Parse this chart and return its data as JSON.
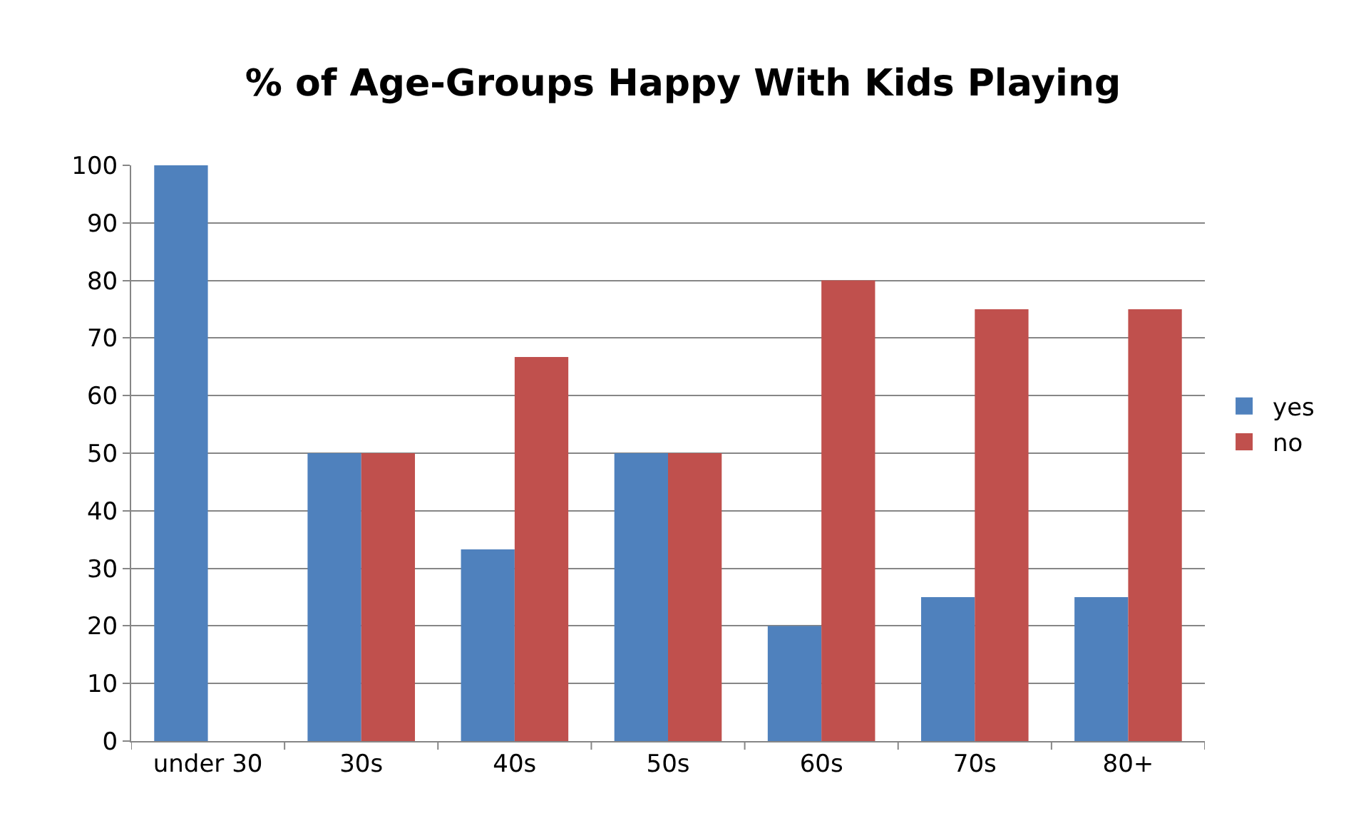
{
  "chart_data": {
    "type": "bar",
    "title": "% of Age-Groups Happy With Kids Playing",
    "categories": [
      "under 30",
      "30s",
      "40s",
      "50s",
      "60s",
      "70s",
      "80+"
    ],
    "series": [
      {
        "name": "yes",
        "color": "#4f81bd",
        "values": [
          100,
          50,
          33.3,
          50,
          20,
          25,
          25
        ]
      },
      {
        "name": "no",
        "color": "#c0504d",
        "values": [
          0,
          50,
          66.7,
          50,
          80,
          75,
          75
        ]
      }
    ],
    "ylim": [
      0,
      100
    ],
    "yticks": [
      0,
      10,
      20,
      30,
      40,
      50,
      60,
      70,
      80,
      90,
      100
    ],
    "grid": "y",
    "legend": "right"
  }
}
